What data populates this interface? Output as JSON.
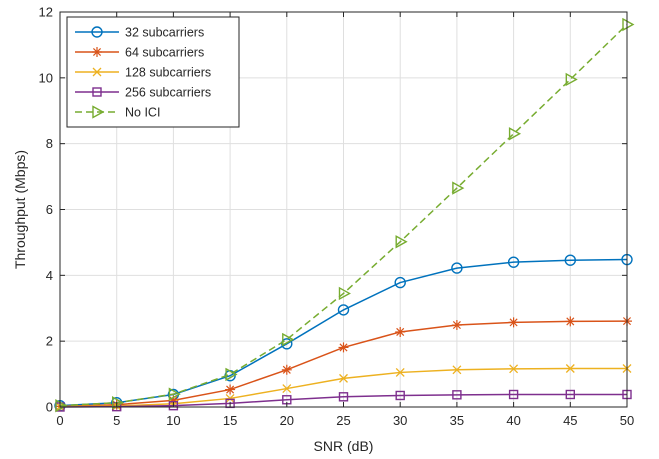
{
  "chart_data": {
    "type": "line",
    "title": "",
    "xlabel": "SNR (dB)",
    "ylabel": "Throughput (Mbps)",
    "xlim": [
      0,
      50
    ],
    "ylim": [
      0,
      12
    ],
    "xticks": [
      "0",
      "5",
      "10",
      "15",
      "20",
      "25",
      "30",
      "35",
      "40",
      "45",
      "50"
    ],
    "yticks": [
      "0",
      "2",
      "4",
      "6",
      "8",
      "10",
      "12"
    ],
    "grid": true,
    "legend_position": "top-left",
    "x": [
      0,
      5,
      10,
      15,
      20,
      25,
      30,
      35,
      40,
      45,
      50
    ],
    "series": [
      {
        "name": "32 subcarriers",
        "color": "#0072BD",
        "marker": "circle",
        "dash": "solid",
        "values": [
          0.04,
          0.13,
          0.38,
          0.95,
          1.92,
          2.95,
          3.78,
          4.22,
          4.4,
          4.46,
          4.48
        ]
      },
      {
        "name": "64 subcarriers",
        "color": "#D95319",
        "marker": "asterisk",
        "dash": "solid",
        "values": [
          0.02,
          0.07,
          0.2,
          0.53,
          1.13,
          1.81,
          2.28,
          2.49,
          2.57,
          2.6,
          2.61
        ]
      },
      {
        "name": "128 subcarriers",
        "color": "#EDB120",
        "marker": "x",
        "dash": "solid",
        "values": [
          0.01,
          0.03,
          0.1,
          0.26,
          0.56,
          0.87,
          1.05,
          1.13,
          1.16,
          1.17,
          1.17
        ]
      },
      {
        "name": "256 subcarriers",
        "color": "#7E2F8E",
        "marker": "square",
        "dash": "solid",
        "values": [
          0.0,
          0.01,
          0.04,
          0.11,
          0.22,
          0.31,
          0.35,
          0.37,
          0.38,
          0.38,
          0.38
        ]
      },
      {
        "name": "No ICI",
        "color": "#77AC30",
        "marker": "triangle-right",
        "dash": "dashed",
        "values": [
          0.04,
          0.13,
          0.39,
          0.99,
          2.05,
          3.45,
          5.02,
          6.65,
          8.3,
          9.95,
          11.62
        ]
      }
    ]
  }
}
